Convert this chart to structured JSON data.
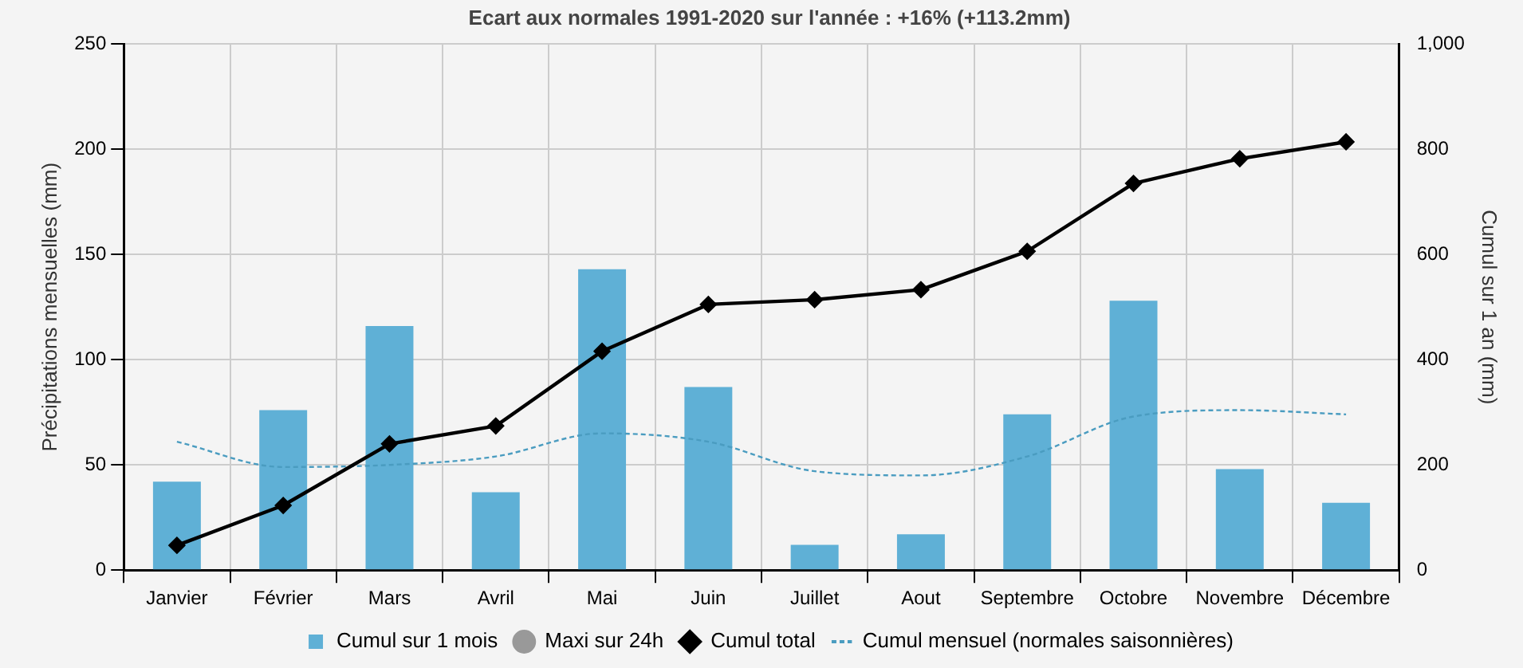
{
  "chart_data": {
    "type": "bar",
    "subtitle": "Ecart aux normales 1991-2020 sur l'année : +16% (+113.2mm)",
    "ylabel": "Précipitations mensuelles (mm)",
    "y2label": "Cumul sur 1 an (mm)",
    "categories": [
      "Janvier",
      "Février",
      "Mars",
      "Avril",
      "Mai",
      "Juin",
      "Juillet",
      "Aout",
      "Septembre",
      "Octobre",
      "Novembre",
      "Décembre"
    ],
    "series": [
      {
        "name": "Cumul sur 1 mois",
        "color": "#5fb0d6",
        "values": [
          42,
          76,
          116,
          37,
          143,
          87,
          12,
          17,
          74,
          128,
          48,
          32
        ]
      },
      {
        "name": "Maxi sur 24h",
        "type": "line",
        "color": "#999999",
        "marker": "circle",
        "values": [
          null,
          null,
          null,
          null,
          null,
          null,
          null,
          null,
          null,
          null,
          null,
          null
        ]
      },
      {
        "name": "Cumul total",
        "type": "line",
        "axis": "y2",
        "color": "#000000",
        "marker": "diamond",
        "values": [
          47,
          123,
          240,
          274,
          416,
          505,
          514,
          533,
          606,
          735,
          782,
          814
        ]
      },
      {
        "name": "Cumul mensuel (normales saisonnières)",
        "type": "line",
        "color": "#4a9cc0",
        "line_style": "dashed",
        "marker": "none",
        "values": [
          61,
          49,
          50,
          54,
          65,
          61,
          47,
          45,
          54,
          73,
          76,
          74
        ]
      }
    ],
    "ylim": [
      0,
      250
    ],
    "yticks": [
      0,
      50,
      100,
      150,
      200,
      250
    ],
    "y2lim": [
      0,
      1000
    ],
    "y2ticks": [
      0,
      200,
      400,
      600,
      800,
      {
        "value": 1000,
        "label": "1,000"
      }
    ],
    "grid": true,
    "legend": "bottom"
  }
}
